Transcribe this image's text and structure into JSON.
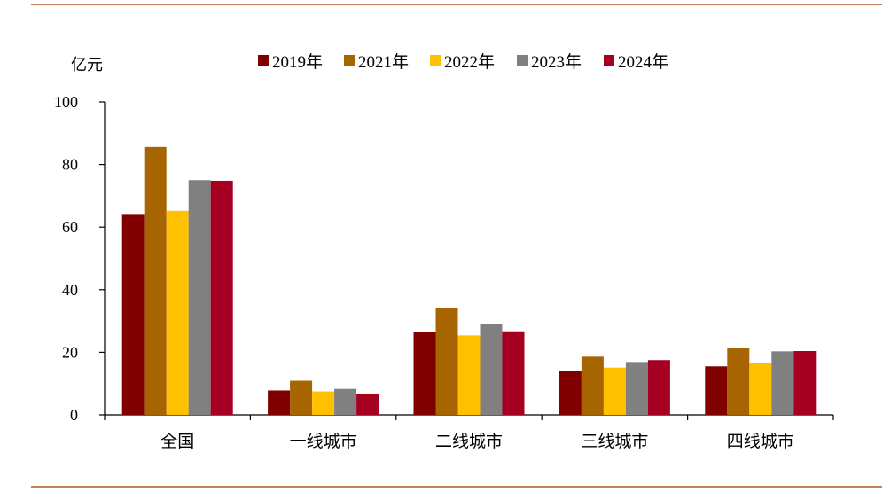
{
  "chart_data": {
    "type": "bar",
    "unit": "亿元",
    "categories": [
      "全国",
      "一线城市",
      "二线城市",
      "三线城市",
      "四线城市"
    ],
    "series": [
      {
        "name": "2019年",
        "color": "#800000",
        "values": [
          64.2,
          7.8,
          26.5,
          14.0,
          15.5
        ]
      },
      {
        "name": "2021年",
        "color": "#A66500",
        "values": [
          85.6,
          10.9,
          34.1,
          18.6,
          21.5
        ]
      },
      {
        "name": "2022年",
        "color": "#FFC000",
        "values": [
          65.2,
          7.5,
          25.4,
          15.1,
          16.7
        ]
      },
      {
        "name": "2023年",
        "color": "#808080",
        "values": [
          75.0,
          8.3,
          29.1,
          16.9,
          20.3
        ]
      },
      {
        "name": "2024年",
        "color": "#A50021",
        "values": [
          74.8,
          6.7,
          26.7,
          17.5,
          20.4
        ]
      }
    ],
    "ylim": [
      0,
      100
    ],
    "yticks": [
      0,
      20,
      40,
      60,
      80,
      100
    ],
    "legend": "top",
    "grid": false,
    "frame_color": "#C8805A"
  }
}
